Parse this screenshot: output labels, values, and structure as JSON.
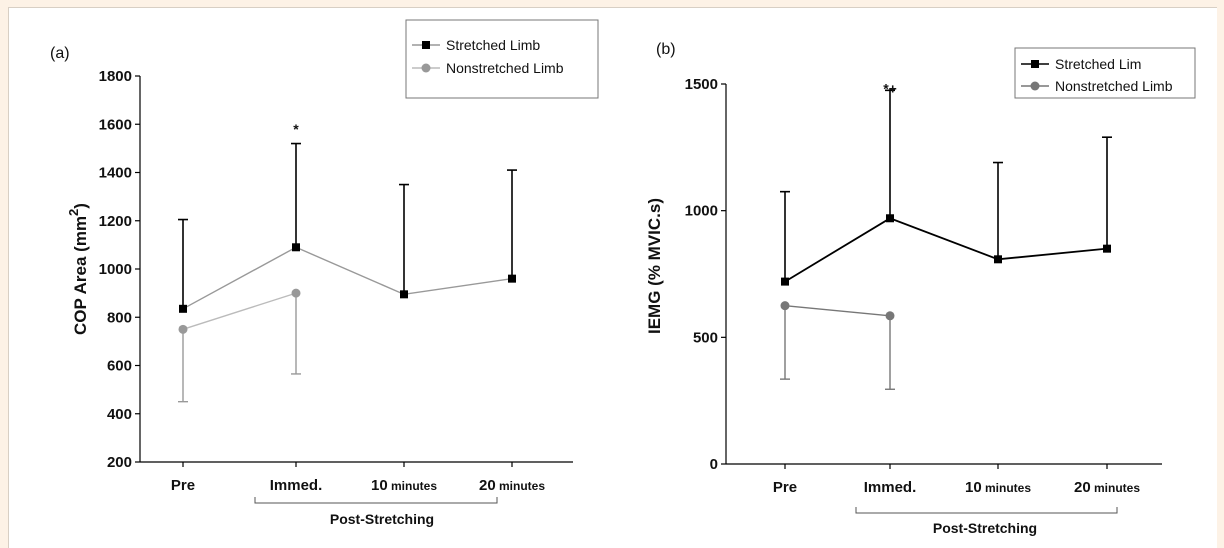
{
  "chart_data": [
    {
      "type": "line",
      "panel_label": "(a)",
      "title": "",
      "ylabel_main": "COP Area (mm",
      "ylabel_sup": "2",
      "ylabel_end": ")",
      "xlabel": "",
      "categories": [
        {
          "main": "Pre",
          "small": ""
        },
        {
          "main": "Immed.",
          "small": ""
        },
        {
          "main": "10",
          "small": " minutes"
        },
        {
          "main": "20",
          "small": " minutes"
        }
      ],
      "group_label": "Post-Stretching",
      "ylim": [
        200,
        1800
      ],
      "yticks": [
        200,
        400,
        600,
        800,
        1000,
        1200,
        1400,
        1600,
        1800
      ],
      "yticks_text": [
        "200",
        "400",
        "600",
        "800",
        "1000",
        "1200",
        "1400",
        "1600",
        "1800"
      ],
      "grid": false,
      "legend": "top-right",
      "annotations": [
        {
          "text": "*",
          "category_index": 1,
          "y": 1560
        }
      ],
      "series": [
        {
          "name": "Stretched Limb",
          "values": [
            835,
            1090,
            895,
            960
          ],
          "error_high": [
            1205,
            1520,
            1350,
            1410
          ],
          "error_low": [
            null,
            null,
            null,
            null
          ],
          "color": "#000000",
          "line_color": "#999999",
          "marker": "square"
        },
        {
          "name": "Nonstretched Limb",
          "values": [
            750,
            900,
            null,
            null
          ],
          "error_high": [
            null,
            null,
            null,
            null
          ],
          "error_low": [
            450,
            565,
            null,
            null
          ],
          "color": "#999999",
          "line_color": "#bbbbbb",
          "marker": "circle"
        }
      ]
    },
    {
      "type": "line",
      "panel_label": "(b)",
      "title": "",
      "ylabel_main": "IEMG (% MVIC.s)",
      "ylabel_sup": "",
      "ylabel_end": "",
      "xlabel": "",
      "categories": [
        {
          "main": "Pre",
          "small": ""
        },
        {
          "main": "Immed.",
          "small": ""
        },
        {
          "main": "10",
          "small": " minutes"
        },
        {
          "main": "20",
          "small": " minutes"
        }
      ],
      "group_label": "Post-Stretching",
      "ylim": [
        0,
        1500
      ],
      "yticks": [
        0,
        500,
        1000,
        1500
      ],
      "yticks_text": [
        "0",
        "500",
        "1000",
        "1500"
      ],
      "grid": false,
      "legend": "top-right",
      "annotations": [
        {
          "text": "*+",
          "category_index": 1,
          "y": 1550
        }
      ],
      "series": [
        {
          "name": "Stretched Lim",
          "values": [
            720,
            970,
            808,
            850
          ],
          "error_high": [
            1075,
            1475,
            1190,
            1290
          ],
          "error_low": [
            null,
            null,
            null,
            null
          ],
          "color": "#000000",
          "line_color": "#000000",
          "marker": "square"
        },
        {
          "name": "Nonstretched Limb",
          "values": [
            625,
            585,
            null,
            null
          ],
          "error_high": [
            null,
            null,
            null,
            null
          ],
          "error_low": [
            335,
            295,
            null,
            null
          ],
          "color": "#777777",
          "line_color": "#777777",
          "marker": "circle"
        }
      ]
    }
  ]
}
